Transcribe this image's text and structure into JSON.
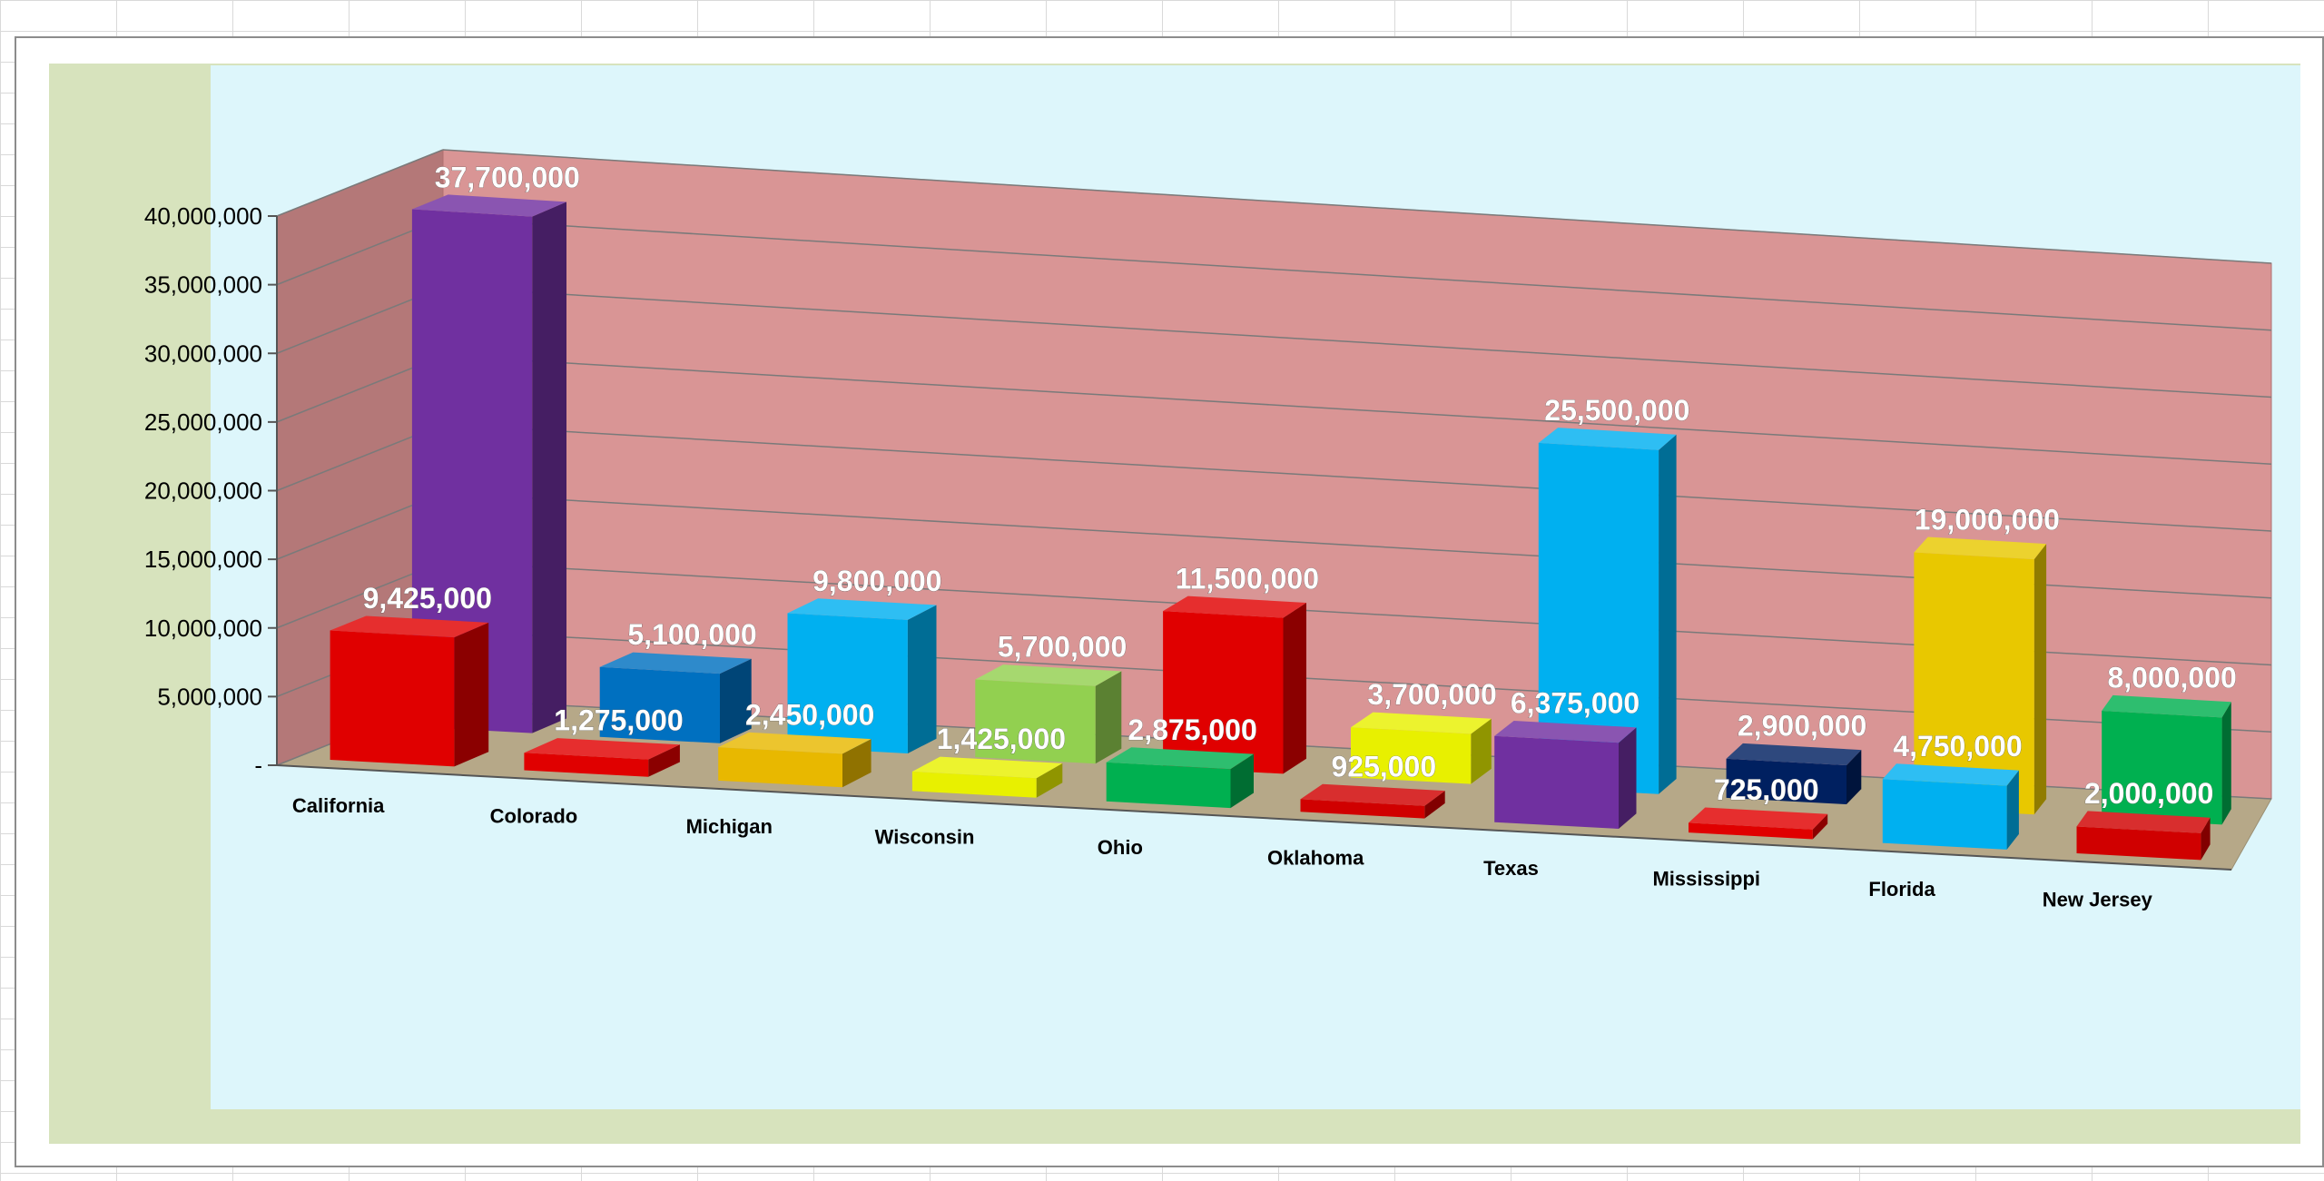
{
  "chart_data": {
    "type": "bar",
    "categories": [
      "California",
      "Colorado",
      "Michigan",
      "Wisconsin",
      "Ohio",
      "Oklahoma",
      "Texas",
      "Mississippi",
      "Florida",
      "New Jersey"
    ],
    "series": [
      {
        "values": [
          9425000,
          1275000,
          2450000,
          1425000,
          2875000,
          925000,
          6375000,
          725000,
          4750000,
          2000000
        ],
        "colors": [
          "#e00000",
          "#e00000",
          "#e8b800",
          "#e8f000",
          "#00b050",
          "#d00000",
          "#7030a0",
          "#e00000",
          "#00b0f0",
          "#d00000"
        ]
      },
      {
        "values": [
          37700000,
          5100000,
          9800000,
          5700000,
          11500000,
          3700000,
          25500000,
          2900000,
          19000000,
          8000000
        ],
        "colors": [
          "#7030a0",
          "#0070c0",
          "#00b0f0",
          "#92d050",
          "#e00000",
          "#e8f000",
          "#00b0f0",
          "#002060",
          "#e8c800",
          "#00b050"
        ]
      }
    ],
    "value_labels": [
      [
        "9,425,000",
        "1,275,000",
        "2,450,000",
        "1,425,000",
        "2,875,000",
        "925,000",
        "6,375,000",
        "725,000",
        "4,750,000",
        "2,000,000"
      ],
      [
        "37,700,000",
        "5,100,000",
        "9,800,000",
        "5,700,000",
        "11,500,000",
        "3,700,000",
        "25,500,000",
        "2,900,000",
        "19,000,000",
        "8,000,000"
      ]
    ],
    "y_ticks": [
      0,
      5000000,
      10000000,
      15000000,
      20000000,
      25000000,
      30000000,
      35000000,
      40000000
    ],
    "y_tick_labels": [
      "-",
      "5,000,000",
      "10,000,000",
      "15,000,000",
      "20,000,000",
      "25,000,000",
      "30,000,000",
      "35,000,000",
      "40,000,000"
    ],
    "ylim": [
      0,
      40000000
    ],
    "grid": true,
    "legend": "none",
    "colors": {
      "back_wall": "#d99595",
      "side_wall": "#b47878",
      "floor": "#b6a888",
      "gridline": "#7a7a7a",
      "plot_area": "#ddf6fb",
      "chart_area": "#d7e3bd"
    }
  }
}
